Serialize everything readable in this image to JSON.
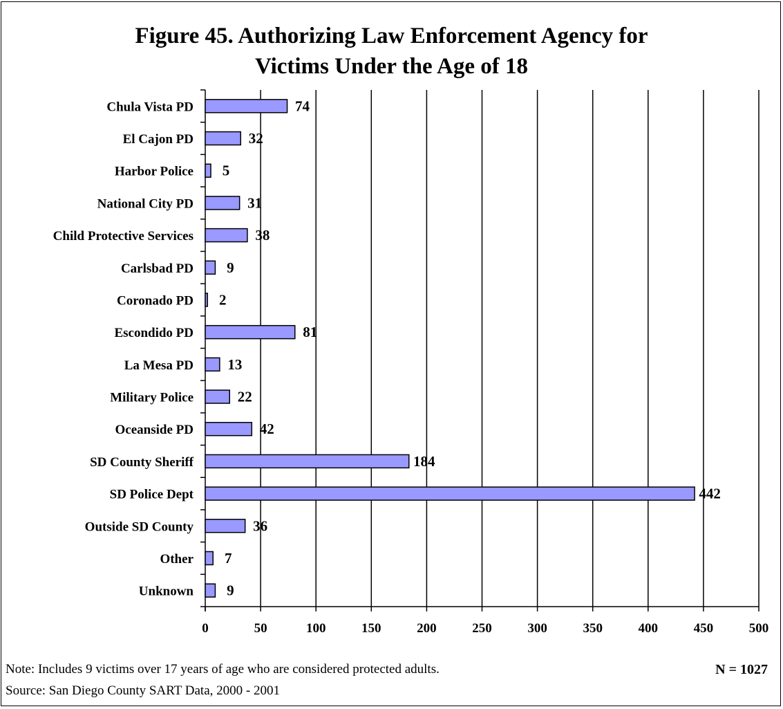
{
  "chart_data": {
    "type": "bar",
    "orientation": "horizontal",
    "title_lines": [
      "Figure 45.  Authorizing Law Enforcement Agency for",
      "Victims Under the Age of 18"
    ],
    "categories": [
      "Chula Vista PD",
      "El Cajon PD",
      "Harbor Police",
      "National City PD",
      "Child Protective Services",
      "Carlsbad PD",
      "Coronado PD",
      "Escondido PD",
      "La Mesa PD",
      "Military Police",
      "Oceanside PD",
      "SD County Sheriff",
      "SD Police Dept",
      "Outside SD County",
      "Other",
      "Unknown"
    ],
    "values": [
      74,
      32,
      5,
      31,
      38,
      9,
      2,
      81,
      13,
      22,
      42,
      184,
      442,
      36,
      7,
      9
    ],
    "xlim": [
      0,
      500
    ],
    "xticks": [
      0,
      50,
      100,
      150,
      200,
      250,
      300,
      350,
      400,
      450,
      500
    ],
    "grid": true,
    "bar_color": "#9999ff"
  },
  "footer": {
    "note": "Note:  Includes 9 victims over 17 years of age who are considered protected adults.",
    "n": "N = 1027",
    "source": "Source:  San Diego County SART Data, 2000 - 2001"
  }
}
